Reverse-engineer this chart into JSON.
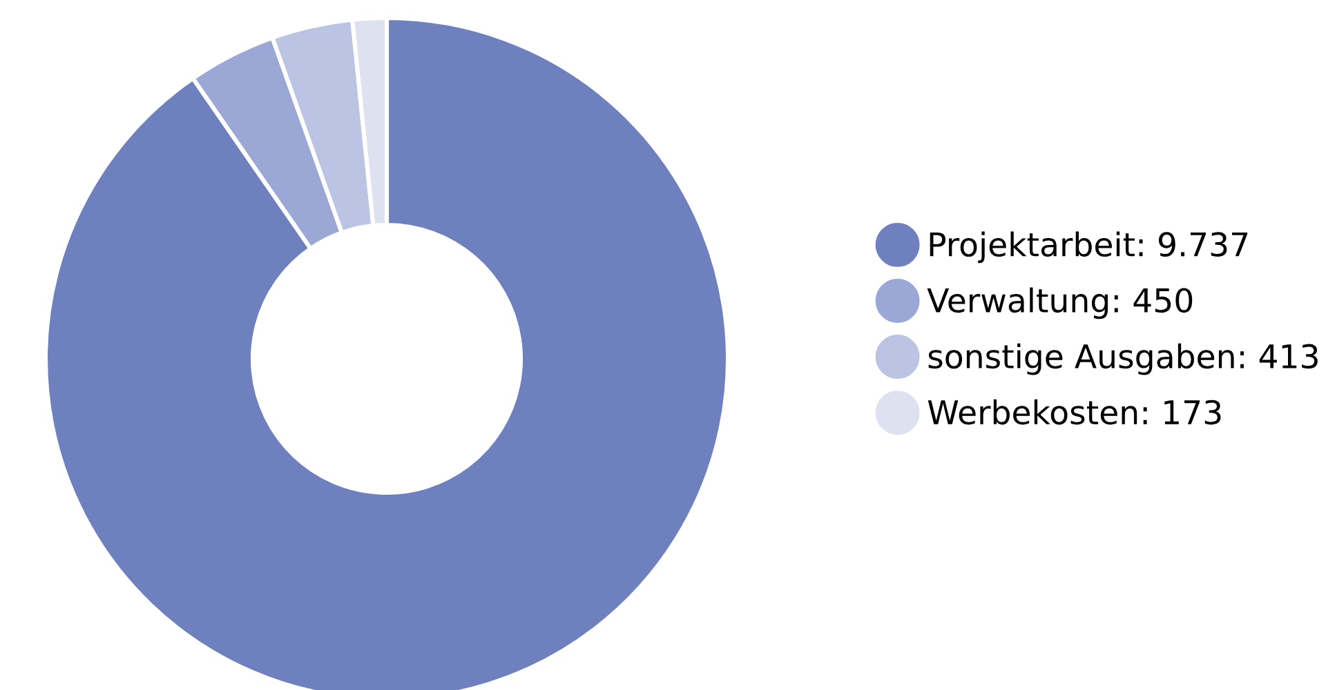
{
  "chart_data": {
    "type": "donut",
    "categories": [
      "Projektarbeit",
      "Verwaltung",
      "sonstige Ausgaben",
      "Werbekosten"
    ],
    "values": [
      9737,
      450,
      413,
      173
    ],
    "value_labels": [
      "9.737",
      "450",
      "413",
      "173"
    ],
    "colors": [
      "#6f80bf",
      "#9ba8d5",
      "#bcc4e3",
      "#dde1f0"
    ],
    "legend": "right"
  }
}
